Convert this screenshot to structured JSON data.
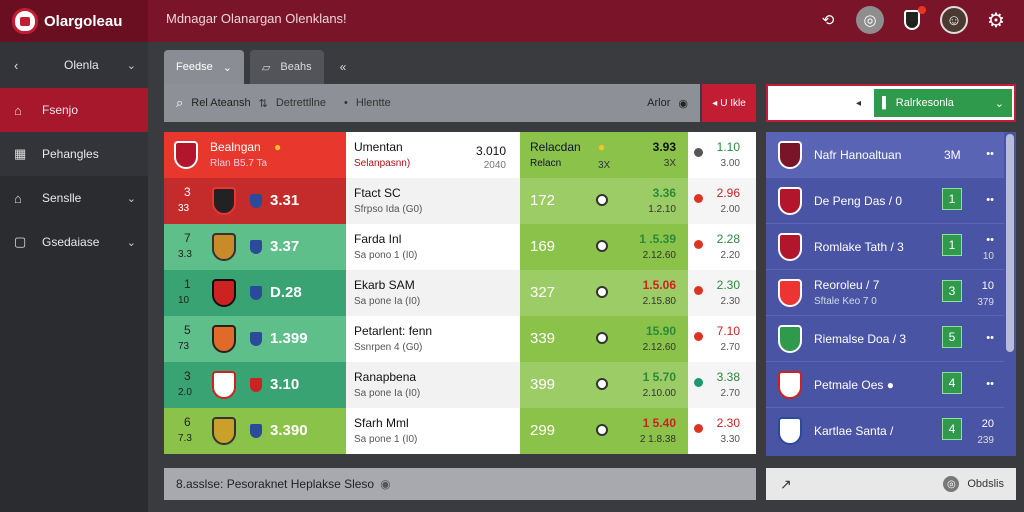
{
  "app": {
    "title": "Olargoleau",
    "header_title": "Mdnagar Olanargan Olenklans!"
  },
  "colors": {
    "topbar": "#7a1428",
    "accent": "#c21d32",
    "green": "#2f9a4b",
    "panel": "#4a54a4"
  },
  "sidebar": {
    "items": [
      {
        "label": "Olenla",
        "icon": "left-arrow-icon"
      },
      {
        "label": "Fsenjo",
        "icon": "home-icon"
      },
      {
        "label": "Pehangles",
        "icon": "calendar-icon"
      },
      {
        "label": "Senslle",
        "icon": "home-outline-icon"
      },
      {
        "label": "Gsedaiase",
        "icon": "document-icon"
      }
    ]
  },
  "tabs": [
    {
      "label": "Feedse"
    },
    {
      "label": "Beahs"
    }
  ],
  "filter": {
    "search_label": "Rel Ateansh",
    "mid_label": "Detrettllne",
    "sep_label": "Hlentte",
    "right_label": "Arlor",
    "btn_label": "U Ikle"
  },
  "dropdown": {
    "value": "Ralrkesonla"
  },
  "rows": [
    {
      "team_name": "Bealngan",
      "team_sub": "Rlan B5.7 Ta",
      "match_name": "Umentan",
      "match_sub": "Selanpasnn)",
      "match_score1": "3.010",
      "match_score2": "2040",
      "odd_main": "Relacdan",
      "odd_sub": "Relacn",
      "odd_mid": "3X",
      "odd_r1": "3.93",
      "odd_r2": "3X",
      "out1": "1.10",
      "out2": "3.00"
    },
    {
      "rank": "3",
      "rank2": "33",
      "team_val": "3.31",
      "match_name": "Ftact SC",
      "match_sub": "Sfrpso Ida (G0)",
      "odd_main": "172",
      "odd_r1": "3.36",
      "odd_r2": "1.2.10",
      "out1": "2.96",
      "out2": "2.00"
    },
    {
      "rank": "7",
      "rank2": "3.3",
      "team_val": "3.37",
      "match_name": "Farda Inl",
      "match_sub": "Sa pono 1 (I0)",
      "odd_main": "169",
      "odd_r1": "1 .5.39",
      "odd_r2": "2.12.60",
      "out1": "2.28",
      "out2": "2.20"
    },
    {
      "rank": "1",
      "rank2": "10",
      "team_val": "D.28",
      "match_name": "Ekarb SAM",
      "match_sub": "Sa pone Ia (I0)",
      "odd_main": "327",
      "odd_r1": "1.5.06",
      "odd_r2": "2.15.80",
      "out1": "2.30",
      "out2": "2.30"
    },
    {
      "rank": "5",
      "rank2": "73",
      "team_val": "1.399",
      "match_name": "Petarlent: fenn",
      "match_sub": "Ssnrpen 4 (G0)",
      "odd_main": "339",
      "odd_r1": "15.90",
      "odd_r2": "2.12.60",
      "out1": "7.10",
      "out2": "2.70"
    },
    {
      "rank": "3",
      "rank2": "2.0",
      "team_val": "3.10",
      "match_name": "Ranapbena",
      "match_sub": "Sa pone Ia (I0)",
      "odd_main": "399",
      "odd_r1": "1 5.70",
      "odd_r2": "2.10.00",
      "out1": "3.38",
      "out2": "2.70"
    },
    {
      "rank": "6",
      "rank2": "7.3",
      "team_val": "3.390",
      "match_name": "Sfarh Mml",
      "match_sub": "Sa pone 1 (I0)",
      "odd_main": "299",
      "odd_r1": "1 5.40",
      "odd_r2": "2 1.8.38",
      "out1": "2.30",
      "out2": "3.30"
    }
  ],
  "panel": {
    "header_name": "Nafr Hanoaltuan",
    "header_val": "3M",
    "rows": [
      {
        "name": "De Peng Das / 0",
        "num": "1",
        "s1": "••",
        "s2": ""
      },
      {
        "name": "Romlake Tath / 3",
        "num": "1",
        "s1": "••",
        "s2": "10"
      },
      {
        "name": "Reoroleu / 7",
        "sub": "Sftale Keo 7 0",
        "num": "3",
        "s1": "10",
        "s2": "379"
      },
      {
        "name": "Riemalse Doa / 3",
        "num": "5",
        "s1": "••",
        "s2": ""
      },
      {
        "name": "Petmale Oes ●",
        "num": "4",
        "s1": "••",
        "s2": ""
      },
      {
        "name": "Kartlae Santa /",
        "num": "4",
        "s1": "20",
        "s2": "239"
      }
    ]
  },
  "footer": {
    "text": "8.asslse: Pesoraknet Heplakse Sleso",
    "right_label": "Obdslis"
  }
}
